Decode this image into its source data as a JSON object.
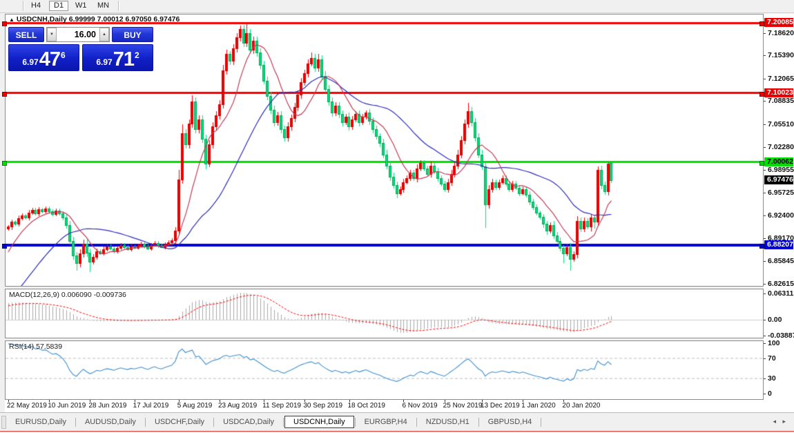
{
  "toolbar": {
    "periods": [
      {
        "label": "H4",
        "active": false
      },
      {
        "label": "D1",
        "active": true
      },
      {
        "label": "W1",
        "active": false
      },
      {
        "label": "MN",
        "active": false
      }
    ]
  },
  "chart": {
    "marker": "▲",
    "symbol": "USDCNH,Daily",
    "ohlc_text": "6.99999 7.00012 6.97050 6.97476",
    "trade": {
      "sell": "SELL",
      "buy": "BUY",
      "volume": "16.00",
      "down_arrow": "▼",
      "up_arrow": "▲",
      "sell_small": "6.97",
      "sell_big": "47",
      "sell_sup": "6",
      "buy_small": "6.97",
      "buy_big": "71",
      "buy_sup": "2"
    },
    "price_axis": {
      "ticks": [
        "7.18620",
        "7.15390",
        "7.12065",
        "7.08835",
        "7.05510",
        "7.02280",
        "6.98955",
        "6.95725",
        "6.92400",
        "6.89170",
        "6.85845",
        "6.82615"
      ],
      "badges": [
        {
          "label": "7.20085",
          "price": 7.20085,
          "type": "red"
        },
        {
          "label": "7.10023",
          "price": 7.10023,
          "type": "red"
        },
        {
          "label": "7.00062",
          "price": 7.00062,
          "type": "green"
        },
        {
          "label": "6.97476",
          "price": 6.97476,
          "type": "black"
        },
        {
          "label": "6.88207",
          "price": 6.88207,
          "type": "blue"
        }
      ]
    },
    "hlines": [
      {
        "price": 7.20085,
        "color": "#f20000",
        "width": 3
      },
      {
        "price": 7.10023,
        "color": "#f20000",
        "width": 3
      },
      {
        "price": 7.00062,
        "color": "#00dc00",
        "width": 3
      },
      {
        "price": 6.88207,
        "color": "#0000d4",
        "width": 4
      }
    ],
    "dates": [
      {
        "label": "22 May 2019",
        "i": 0
      },
      {
        "label": "10 Jun 2019",
        "i": 12
      },
      {
        "label": "28 Jun 2019",
        "i": 24
      },
      {
        "label": "17 Jul 2019",
        "i": 37
      },
      {
        "label": "5 Aug 2019",
        "i": 50
      },
      {
        "label": "23 Aug 2019",
        "i": 62
      },
      {
        "label": "11 Sep 2019",
        "i": 75
      },
      {
        "label": "30 Sep 2019",
        "i": 87
      },
      {
        "label": "18 Oct 2019",
        "i": 100
      },
      {
        "label": "6 Nov 2019",
        "i": 116
      },
      {
        "label": "25 Nov 2019",
        "i": 128
      },
      {
        "label": "13 Dec 2019",
        "i": 139
      },
      {
        "label": "1 Jan 2020",
        "i": 151
      },
      {
        "label": "20 Jan 2020",
        "i": 163
      }
    ],
    "candles": {
      "pre_closes": [
        6.72,
        6.722,
        6.726,
        6.73,
        6.728,
        6.734,
        6.738,
        6.742,
        6.74,
        6.746,
        6.752,
        6.758,
        6.764,
        6.77,
        6.776,
        6.782,
        6.79,
        6.798,
        6.806,
        6.814,
        6.822,
        6.83,
        6.84,
        6.85,
        6.86,
        6.87,
        6.878,
        6.886,
        6.894,
        6.902
      ],
      "closes": [
        6.908,
        6.915,
        6.912,
        6.92,
        6.924,
        6.921,
        6.928,
        6.932,
        6.927,
        6.933,
        6.93,
        6.934,
        6.93,
        6.926,
        6.931,
        6.927,
        6.921,
        6.91,
        6.888,
        6.867,
        6.856,
        6.87,
        6.884,
        6.871,
        6.858,
        6.865,
        6.873,
        6.87,
        6.876,
        6.88,
        6.877,
        6.873,
        6.878,
        6.882,
        6.879,
        6.876,
        6.88,
        6.878,
        6.881,
        6.884,
        6.88,
        6.877,
        6.882,
        6.885,
        6.881,
        6.879,
        6.883,
        6.886,
        6.889,
        6.902,
        6.976,
        7.042,
        7.026,
        7.056,
        7.088,
        7.048,
        7.062,
        7.034,
        6.999,
        7.026,
        7.052,
        7.068,
        7.084,
        7.132,
        7.156,
        7.146,
        7.164,
        7.18,
        7.192,
        7.172,
        7.186,
        7.162,
        7.175,
        7.158,
        7.14,
        7.118,
        7.096,
        7.076,
        7.058,
        7.068,
        7.048,
        7.036,
        7.052,
        7.064,
        7.08,
        7.098,
        7.116,
        7.128,
        7.142,
        7.15,
        7.136,
        7.148,
        7.125,
        7.106,
        7.088,
        7.072,
        7.082,
        7.07,
        7.058,
        7.066,
        7.052,
        7.062,
        7.07,
        7.058,
        7.066,
        7.072,
        7.06,
        7.048,
        7.038,
        7.028,
        7.012,
        6.996,
        6.98,
        6.968,
        6.956,
        6.962,
        6.972,
        6.978,
        6.986,
        6.978,
        6.992,
        7.0,
        6.992,
        6.984,
        6.996,
        6.988,
        6.978,
        6.97,
        6.962,
        6.972,
        6.984,
        6.996,
        7.012,
        7.032,
        7.056,
        7.074,
        7.058,
        7.036,
        7.012,
        6.995,
        6.94,
        6.962,
        6.972,
        6.965,
        6.972,
        6.978,
        6.97,
        6.962,
        6.97,
        6.964,
        6.956,
        6.962,
        6.954,
        6.944,
        6.936,
        6.928,
        6.922,
        6.912,
        6.902,
        6.91,
        6.896,
        6.888,
        6.878,
        6.87,
        6.879,
        6.862,
        6.869,
        6.916,
        6.905,
        6.916,
        6.908,
        6.921,
        6.915,
        6.99,
        6.968,
        6.9585,
        6.999,
        6.97476
      ],
      "open_ov": {
        "177": 6.99999
      },
      "wick_hi": {
        "50": 6.99,
        "51": 7.055,
        "54": 7.097,
        "63": 7.14,
        "68": 7.197,
        "70": 7.1985,
        "89": 7.158,
        "91": 7.156,
        "135": 7.086,
        "167": 6.923,
        "173": 6.995,
        "176": 7.0005,
        "177": 7.00012
      },
      "wick_lo": {
        "20": 6.845,
        "24": 6.843,
        "58": 6.9905,
        "114": 6.9495,
        "140": 6.9065,
        "163": 6.8565,
        "165": 6.845,
        "172": 6.906,
        "177": 6.9705
      }
    },
    "ma_fast_period": 10,
    "ma_slow_period": 30
  },
  "macd": {
    "name": "MACD(12,26,9)",
    "v1": "0.006090",
    "v2": "-0.009736",
    "axis": [
      {
        "label": "0.063113",
        "v": 0.063113
      },
      {
        "label": "0.00",
        "v": 0
      },
      {
        "label": "-0.038872",
        "v": -0.038872
      }
    ]
  },
  "rsi": {
    "name": "RSI(14)",
    "value": "57.5839",
    "axis": [
      {
        "label": "100",
        "v": 100
      },
      {
        "label": "70",
        "v": 70
      },
      {
        "label": "30",
        "v": 30
      },
      {
        "label": "0",
        "v": 0
      }
    ],
    "levels": [
      70,
      30
    ]
  },
  "tabs": {
    "items": [
      {
        "label": "EURUSD,Daily",
        "active": false
      },
      {
        "label": "AUDUSD,Daily",
        "active": false
      },
      {
        "label": "USDCHF,Daily",
        "active": false
      },
      {
        "label": "USDCAD,Daily",
        "active": false
      },
      {
        "label": "USDCNH,Daily",
        "active": true
      },
      {
        "label": "EURGBP,H4",
        "active": false
      },
      {
        "label": "NZDUSD,H1",
        "active": false
      },
      {
        "label": "GBPUSD,H4",
        "active": false
      }
    ],
    "prev": "◂",
    "next": "▸"
  },
  "colors": {
    "bull": "#f60000",
    "bull_edge": "#d40000",
    "bear": "#00e07a",
    "bear_edge": "#00a85a",
    "ma_fast": "#c23b55",
    "ma_slow": "#2b2bbe",
    "macd_hist": "#a8a8a8",
    "macd_signal": "#ff0000",
    "rsi_line": "#3e8fd0",
    "level_dash": "#bdbdbd"
  }
}
